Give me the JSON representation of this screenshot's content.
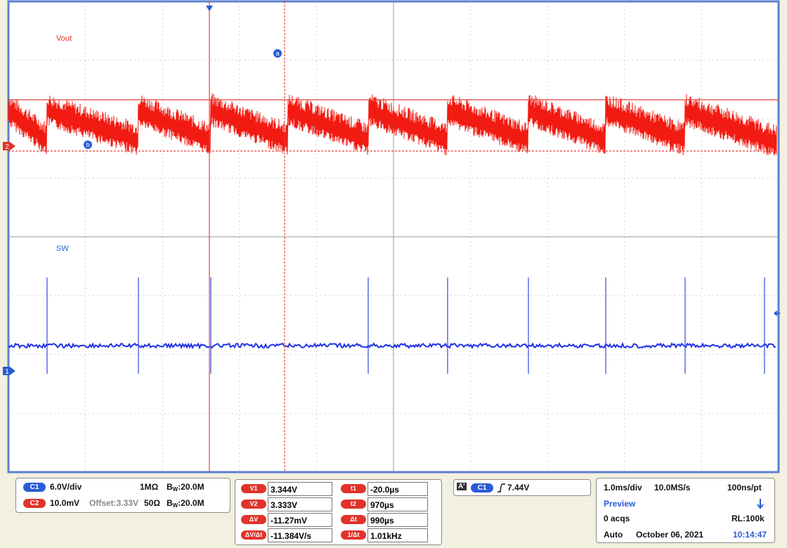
{
  "screen": {
    "trace_labels": [
      "Vout",
      "SW"
    ],
    "cursor_markers": [
      "a",
      "b"
    ],
    "channel_markers": [
      "2",
      "1"
    ]
  },
  "vertical": [
    {
      "badge": "C1",
      "scale": "6.0V/div",
      "impedance": "1MΩ",
      "bw_symbol": "B",
      "bw_sub": "W",
      "bandwidth": ":20.0M"
    },
    {
      "badge": "C2",
      "scale": "10.0mV",
      "offset": "Offset:3.33V",
      "impedance": "50Ω",
      "bw_symbol": "B",
      "bw_sub": "W",
      "bandwidth": ":20.0M"
    }
  ],
  "cursors": {
    "voltage": [
      {
        "label": "V1",
        "value": "3.344V"
      },
      {
        "label": "V2",
        "value": "3.333V"
      },
      {
        "label": "ΔV",
        "value": "-11.27mV"
      },
      {
        "label": "ΔV/Δt",
        "value": "-11.384V/s"
      }
    ],
    "time": [
      {
        "label": "t1",
        "value": "-20.0µs"
      },
      {
        "label": "t2",
        "value": "970µs"
      },
      {
        "label": "Δt",
        "value": "990µs"
      },
      {
        "label": "1/Δt",
        "value": "1.01kHz"
      }
    ]
  },
  "trigger": {
    "icon": "A'",
    "badge": "C1",
    "level": "7.44V"
  },
  "acquisition": {
    "timebase": "1.0ms/div",
    "sample_rate": "10.0MS/s",
    "resolution": "100ns/pt",
    "status": "Preview",
    "acqs": "0 acqs",
    "record_length": "RL:100k",
    "mode": "Auto",
    "date": "October 06, 2021",
    "time": "10:14:47"
  }
}
